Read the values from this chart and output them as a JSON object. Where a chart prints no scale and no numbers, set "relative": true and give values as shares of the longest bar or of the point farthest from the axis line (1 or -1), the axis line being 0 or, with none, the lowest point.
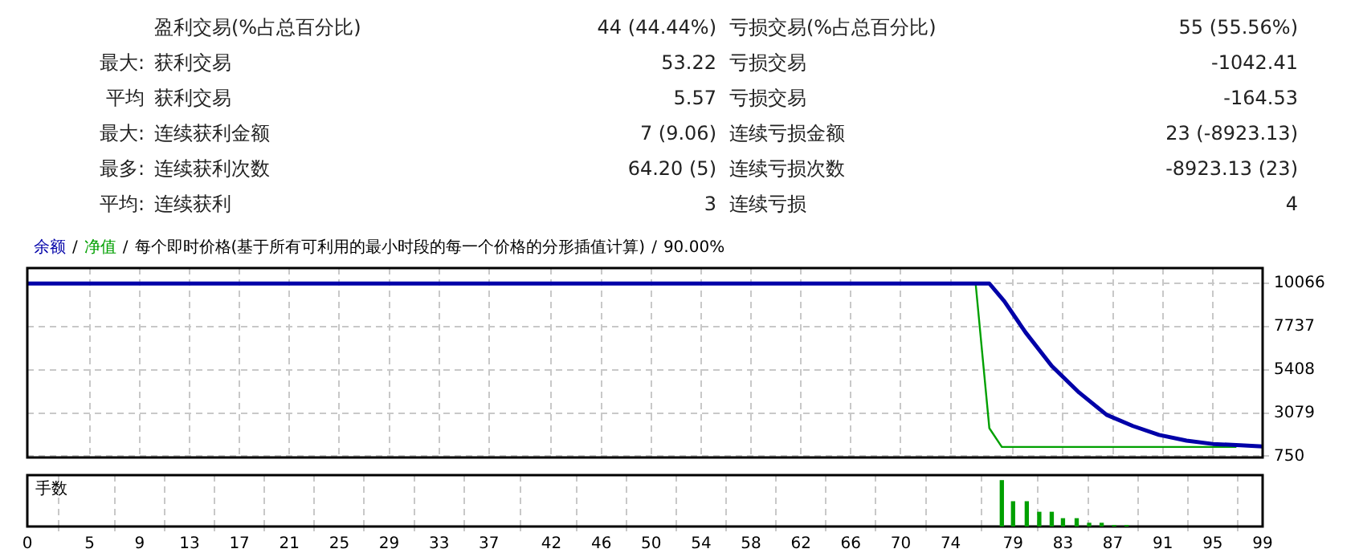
{
  "chart_data": [
    {
      "type": "other",
      "annotations": [
        "盈利交易(%占总百分比)",
        "44 (44.44%)",
        "亏损交易(%占总百分比)",
        "55 (55.56%)",
        "最大:",
        "获利交易",
        "53.22",
        "亏损交易",
        "-1042.41",
        "平均",
        "获利交易",
        "5.57",
        "亏损交易",
        "-164.53",
        "最大:",
        "连续获利金额",
        "7 (9.06)",
        "连续亏损金额",
        "23 (-8923.13)",
        "最多:",
        "连续获利次数",
        "64.20 (5)",
        "连续亏损次数",
        "-8923.13 (23)",
        "平均:",
        "连续获利",
        "3",
        "连续亏损",
        "4"
      ]
    },
    {
      "type": "line",
      "legend": "top left",
      "grid": true,
      "tick_labels": "y",
      "annotations": [
        "/",
        "/",
        "每个即时价格(基于所有可利用的最小时段的每一个价格的分形插值计算)",
        "/",
        "90.00%"
      ],
      "xlim": [
        0,
        99
      ],
      "xticks": [
        0,
        5,
        9,
        13,
        17,
        21,
        25,
        29,
        33,
        37,
        42,
        46,
        50,
        54,
        58,
        62,
        66,
        70,
        74,
        79,
        83,
        87,
        91,
        95,
        99
      ],
      "ylim": [
        680,
        10900
      ],
      "yticks": [
        750,
        3079,
        5408,
        7737,
        10066
      ],
      "series": [
        {
          "name": "余额",
          "color": "#0000a8",
          "x": [
            0,
            77.1,
            78.3,
            80.0,
            82.1,
            84.3,
            86.5,
            88.6,
            90.7,
            92.9,
            95.0,
            97.2,
            99
          ],
          "values": [
            10066,
            10066,
            9110,
            7430,
            5620,
            4180,
            2980,
            2380,
            1900,
            1590,
            1410,
            1340,
            1270
          ]
        },
        {
          "name": "净值",
          "color": "#00a000",
          "x": [
            76.0,
            77.1,
            78.1,
            96.9
          ],
          "values": [
            10066,
            2260,
            1250,
            1250
          ]
        }
      ]
    },
    {
      "type": "bar",
      "ylabel": "手数",
      "relative": true,
      "grid": "x",
      "tick_labels": "x",
      "color": "#00a000",
      "x": [
        78.1,
        79.0,
        80.1,
        81.1,
        82.1,
        83.0,
        84.1,
        85.1,
        86.1,
        87.1,
        88.1
      ],
      "values": [
        1,
        0.54,
        0.54,
        0.31,
        0.31,
        0.17,
        0.17,
        0.07,
        0.07,
        0.02,
        0.02
      ],
      "xlim": [
        0,
        99
      ],
      "xticks": [
        0,
        5,
        9,
        13,
        17,
        21,
        25,
        29,
        33,
        37,
        42,
        46,
        50,
        54,
        58,
        62,
        66,
        70,
        74,
        79,
        83,
        87,
        91,
        95,
        99
      ]
    }
  ]
}
